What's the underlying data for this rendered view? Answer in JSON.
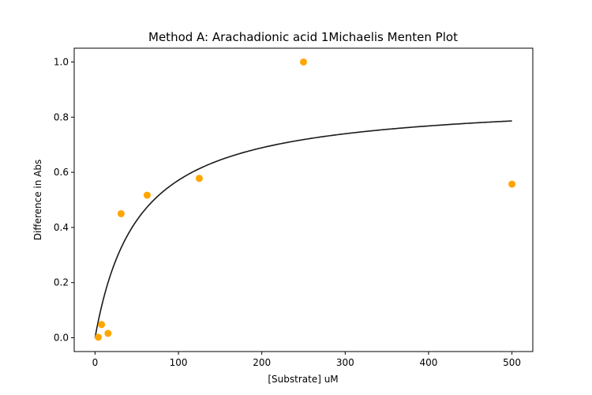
{
  "chart_data": {
    "type": "scatter",
    "title": "Method A: Arachadionic acid 1Michaelis Menten Plot",
    "xlabel": "[Substrate] uM",
    "ylabel": "Difference in Abs",
    "xlim": [
      -25,
      525
    ],
    "ylim": [
      -0.05,
      1.05
    ],
    "x_ticks": [
      0,
      100,
      200,
      300,
      400,
      500
    ],
    "y_ticks": [
      0.0,
      0.2,
      0.4,
      0.6,
      0.8,
      1.0
    ],
    "grid": false,
    "series": [
      {
        "kind": "points",
        "color": "#ffa500",
        "points": [
          {
            "x": 3.9,
            "y": 0.002
          },
          {
            "x": 7.8,
            "y": 0.048
          },
          {
            "x": 15.6,
            "y": 0.016
          },
          {
            "x": 31.25,
            "y": 0.45
          },
          {
            "x": 62.5,
            "y": 0.517
          },
          {
            "x": 125,
            "y": 0.578
          },
          {
            "x": 250,
            "y": 1.0
          },
          {
            "x": 500,
            "y": 0.557
          }
        ]
      },
      {
        "kind": "fit-curve",
        "model": "michaelis-menten",
        "color": "#1a1a1a",
        "vmax": 0.868,
        "km": 52,
        "x_range": [
          0,
          500
        ]
      }
    ]
  }
}
